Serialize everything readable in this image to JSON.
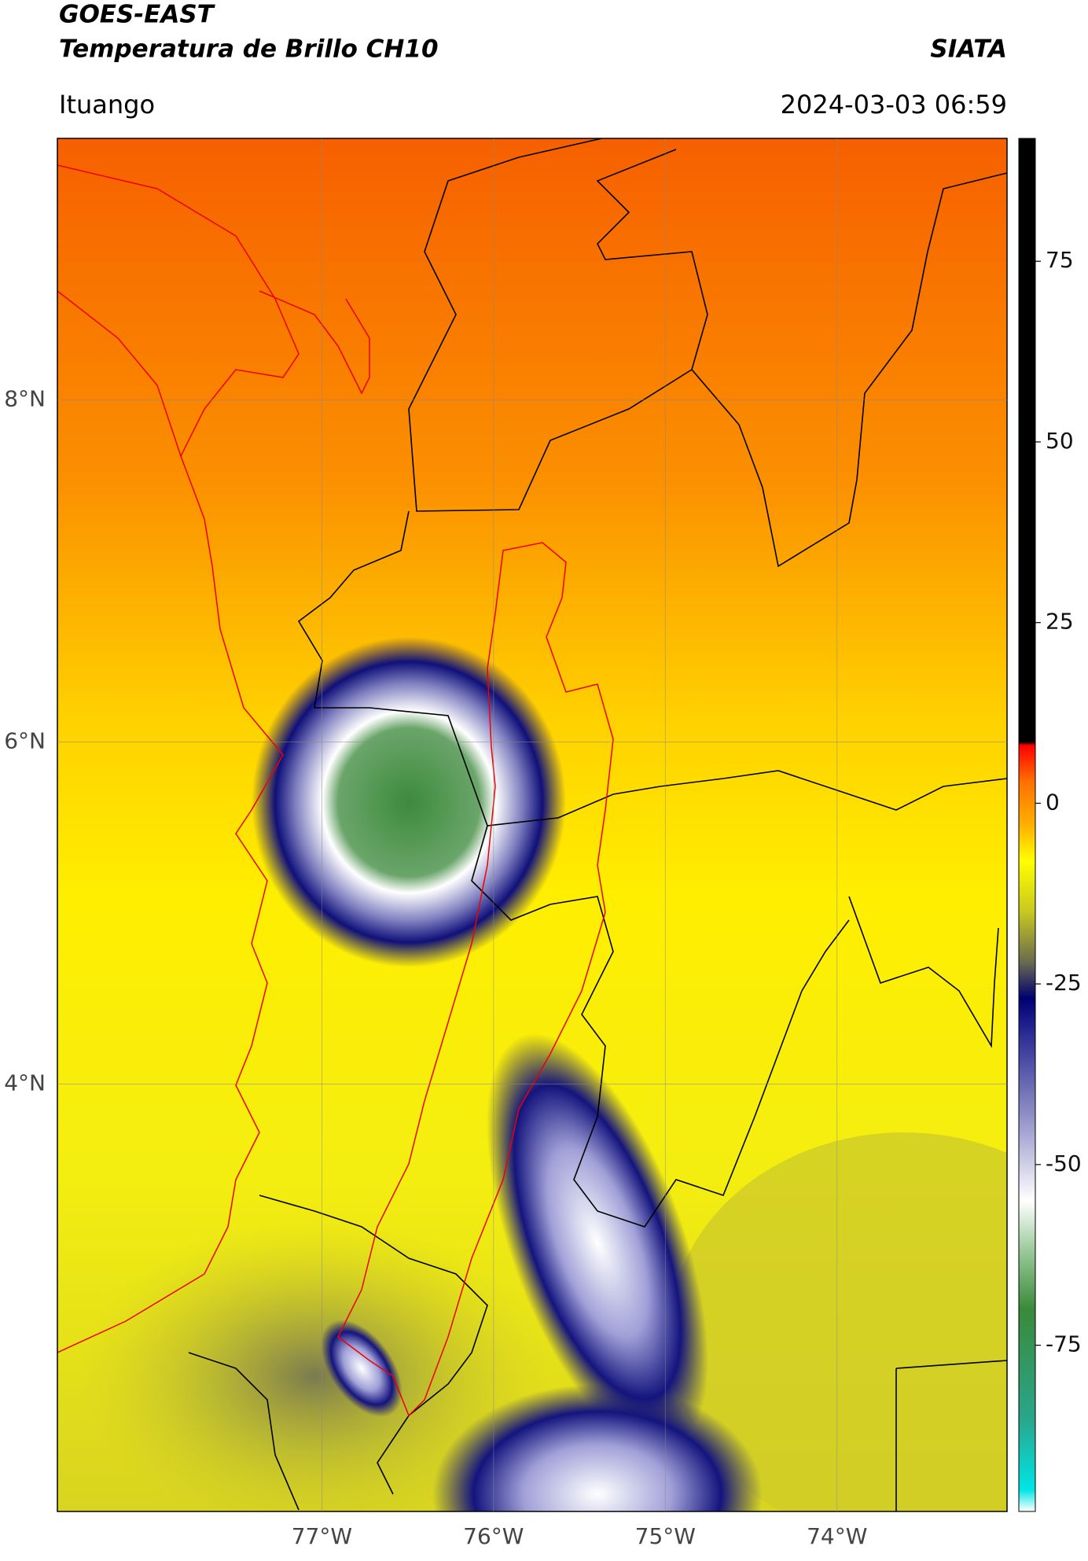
{
  "header": {
    "title": "GOES-EAST",
    "subtitle": "Temperatura de Brillo CH10",
    "source": "SIATA",
    "location": "Ituango",
    "timestamp": "2024-03-03 06:59"
  },
  "map": {
    "xlim": [
      -78.54,
      -73.01
    ],
    "ylim": [
      1.5,
      9.53
    ],
    "xticks": [
      {
        "value": -77,
        "label": "77°W"
      },
      {
        "value": -76,
        "label": "76°W"
      },
      {
        "value": -75,
        "label": "75°W"
      },
      {
        "value": -74,
        "label": "74°W"
      }
    ],
    "yticks": [
      {
        "value": 8,
        "label": "8°N"
      },
      {
        "value": 6,
        "label": "6°N"
      },
      {
        "value": 4,
        "label": "4°N"
      }
    ],
    "grid": true
  },
  "colorbar": {
    "lim": [
      -98,
      92
    ],
    "ticks": [
      -75,
      -50,
      -25,
      0,
      25,
      50,
      75
    ],
    "colormap": [
      {
        "value": -98,
        "color": "#ffffff"
      },
      {
        "value": -95,
        "color": "#00e5e5"
      },
      {
        "value": -85,
        "color": "#2aa58a"
      },
      {
        "value": -70,
        "color": "#3a8a3a"
      },
      {
        "value": -62,
        "color": "#9ac89a"
      },
      {
        "value": -55,
        "color": "#ffffff"
      },
      {
        "value": -45,
        "color": "#a0a0d0"
      },
      {
        "value": -30,
        "color": "#1a1a8a"
      },
      {
        "value": -27,
        "color": "#000070"
      },
      {
        "value": -22,
        "color": "#6a6a50"
      },
      {
        "value": -15,
        "color": "#c8c820"
      },
      {
        "value": -8,
        "color": "#ffff00"
      },
      {
        "value": -3,
        "color": "#ffb000"
      },
      {
        "value": 3,
        "color": "#ff7000"
      },
      {
        "value": 8,
        "color": "#ff0000"
      },
      {
        "value": 8.5,
        "color": "#000000"
      },
      {
        "value": 92,
        "color": "#000000"
      }
    ]
  }
}
